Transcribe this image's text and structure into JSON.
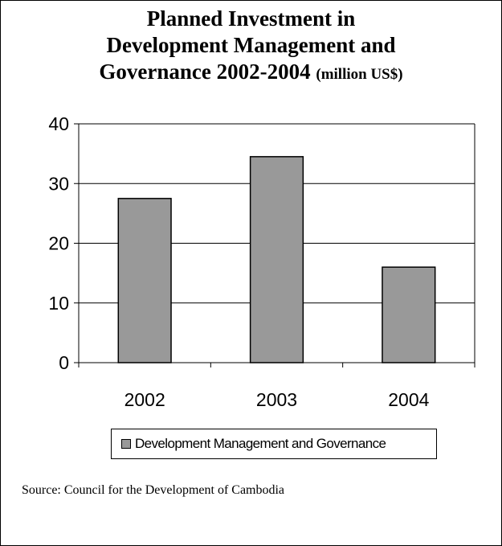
{
  "chart_data": {
    "type": "bar",
    "title": "Planned Investment in Development Management and Governance 2002-2004",
    "title_lines": [
      "Planned Investment in",
      "Development Management and",
      "Governance 2002-2004"
    ],
    "title_unit": "(million US$)",
    "categories": [
      "2002",
      "2003",
      "2004"
    ],
    "series": [
      {
        "name": "Development Management and Governance",
        "values": [
          27.5,
          34.5,
          16
        ],
        "color": "#999999"
      }
    ],
    "ylim": [
      0,
      40
    ],
    "yticks": [
      "0",
      "10",
      "20",
      "30",
      "40"
    ],
    "xlabel": "",
    "ylabel": "",
    "grid": true,
    "legend_position": "bottom"
  },
  "source": "Source: Council for the Development of Cambodia"
}
